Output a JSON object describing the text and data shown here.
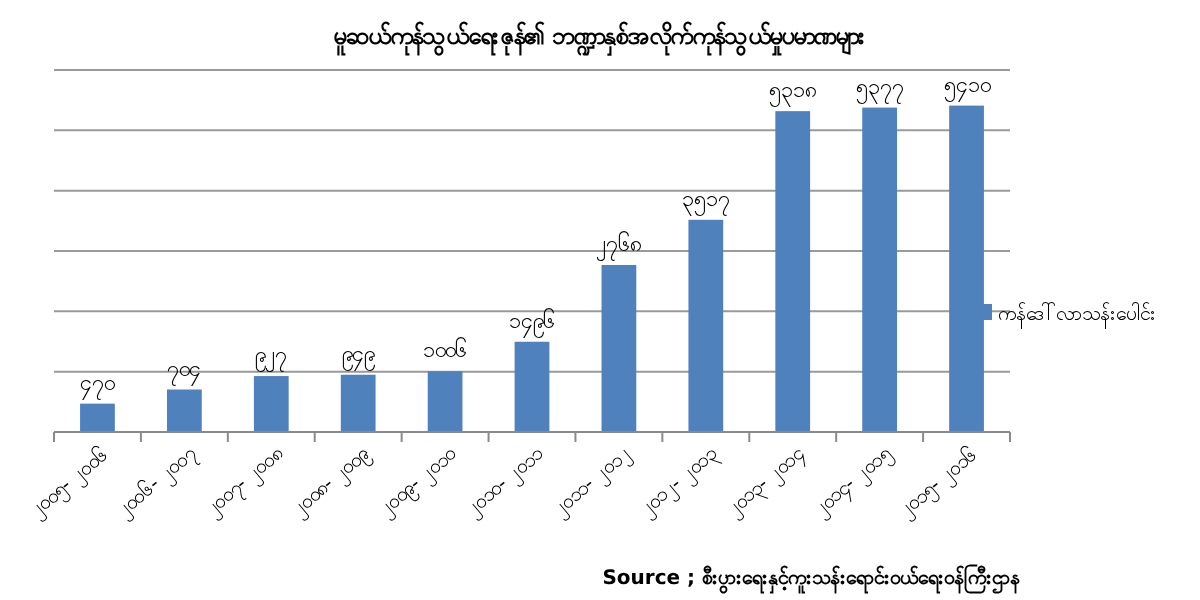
{
  "chart_data": {
    "type": "bar",
    "title": "မူဆယ်ကုန်သွယ်ရေးဇုန်၏ ဘဏ္ဍာနှစ်အလိုက်ကုန်သွယ်မှုပမာဏများ",
    "categories": [
      "၂၀၀၅- ၂၀၀၆",
      "၂၀၀၆- ၂၀၀၇",
      "၂၀၀၇- ၂၀၀၈",
      "၂၀၀၈- ၂၀၀၉",
      "၂၀၀၉- ၂၀၁၀",
      "၂၀၁၀- ၂၀၁၁",
      "၂၀၁၁- ၂၀၁၂",
      "၂၀၁၂- ၂၀၁၃",
      "၂၀၁၃- ၂၀၁၄",
      "၂၀၁၄- ၂၀၁၅",
      "၂၀၁၅- ၂၀၁၆"
    ],
    "series": [
      {
        "name": "ကန်ဒေါ်လာသန်းပေါင်း",
        "color": "#4f81bd",
        "values": [
          470,
          704,
          927,
          949,
          1006,
          1496,
          2768,
          3517,
          5318,
          5377,
          5410
        ],
        "value_labels": [
          "၄၇၀",
          "၇၀၄",
          "၉၂၇",
          "၉၄၉",
          "၁၀၀၆",
          "၁၄၉၆",
          "၂၇၆၈",
          "၃၅၁၇",
          "၅၃၁၈",
          "၅၃၇၇",
          "၅၄၁၀"
        ]
      }
    ],
    "ylim": [
      0,
      6000
    ],
    "yticks": [
      {
        "value": 0,
        "label": null
      },
      {
        "value": 1000,
        "label": null
      },
      {
        "value": 2000,
        "label": null
      },
      {
        "value": 3000,
        "label": null
      },
      {
        "value": 4000,
        "label": null
      },
      {
        "value": 5000,
        "label": null
      },
      {
        "value": 6000,
        "label": null
      }
    ],
    "tick_labels": "x",
    "grid": "y",
    "legend": "right",
    "annotations": [
      "Source ; စီးပွားရေးနှင့်ကူးသန်းရောင်းဝယ်ရေးဝန်ကြီးဌာန"
    ]
  }
}
